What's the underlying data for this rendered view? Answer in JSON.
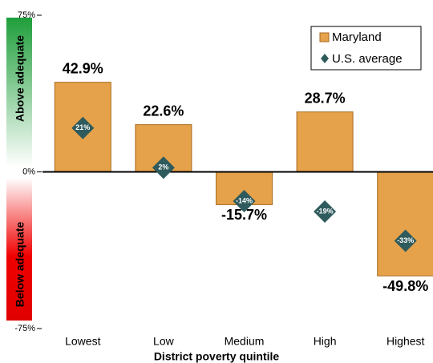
{
  "chart_data": {
    "type": "bar",
    "x_label": "District poverty quintile",
    "annotations": [
      "Above adequate",
      "Below adequate"
    ],
    "categories": [
      "Lowest",
      "Low",
      "Medium",
      "High",
      "Highest"
    ],
    "series": [
      {
        "name": "Maryland",
        "color": "#e5a24a",
        "values": [
          42.9,
          22.6,
          -15.7,
          28.7,
          -49.8
        ],
        "value_labels": [
          "42.9%",
          "22.6%",
          "-15.7%",
          "28.7%",
          "-49.8%"
        ]
      },
      {
        "name": "U.S. average",
        "color": "#2f5b5d",
        "marker": "diamond",
        "values": [
          21,
          2,
          -14,
          -19,
          -33
        ],
        "value_labels": [
          "21%",
          "2%",
          "-14%",
          "-19%",
          "-33%"
        ]
      }
    ],
    "ylim": [
      -75,
      75
    ],
    "yticks": [
      {
        "value": -75,
        "label": "-75%"
      },
      {
        "value": 0,
        "label": "0%"
      },
      {
        "value": 75,
        "label": "75%"
      }
    ],
    "legend": "upper right"
  }
}
